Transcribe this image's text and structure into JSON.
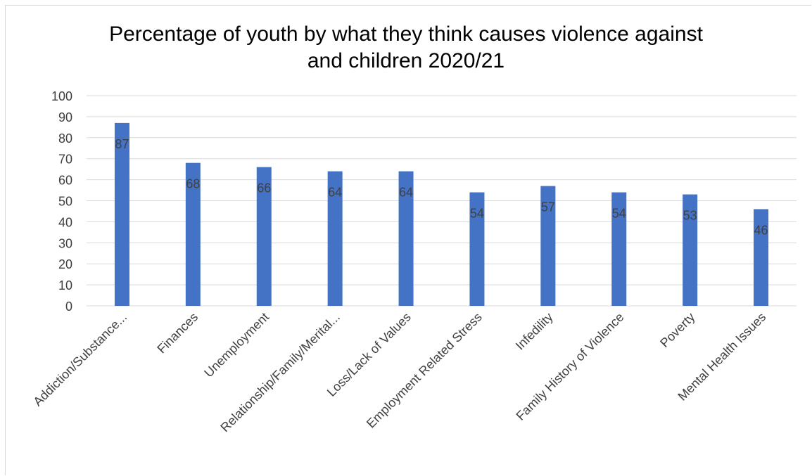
{
  "chart_data": {
    "type": "bar",
    "title_line1": "Percentage of youth by what they think causes violence against",
    "title_line2": "and children 2020/21",
    "categories": [
      "Addiction/Substance...",
      "Finances",
      "Unemployment",
      "Relationship/Family/Merital...",
      "Loss/Lack of Values",
      "Employment Related Stress",
      "Infedility",
      "Family History of Violence",
      "Poverty",
      "Mental Health Issues"
    ],
    "values": [
      87,
      68,
      66,
      64,
      64,
      54,
      57,
      54,
      53,
      46
    ],
    "ylim": [
      0,
      100
    ],
    "yticks": [
      "0",
      "10",
      "20",
      "30",
      "40",
      "50",
      "60",
      "70",
      "80",
      "90",
      "100"
    ],
    "grid": true,
    "bar_color": "#4472c4",
    "grid_color": "#d9d9d9",
    "label_color": "#404040"
  }
}
